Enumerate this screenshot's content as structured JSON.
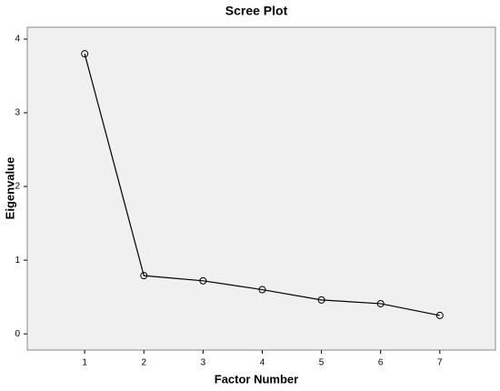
{
  "chart_data": {
    "type": "line",
    "title": "Scree Plot",
    "x_label": "Factor Number",
    "y_label": "Eigenvalue",
    "x": [
      1,
      2,
      3,
      4,
      5,
      6,
      7
    ],
    "values": [
      3.8,
      0.79,
      0.72,
      0.6,
      0.46,
      0.41,
      0.25
    ],
    "color": "#000000",
    "xlim": [
      0.03,
      7.94
    ],
    "xticks": [
      1,
      2,
      3,
      4,
      5,
      6,
      7
    ],
    "ylim": [
      -0.22,
      4.16
    ],
    "yticks": [
      0,
      1,
      2,
      3,
      4
    ]
  }
}
